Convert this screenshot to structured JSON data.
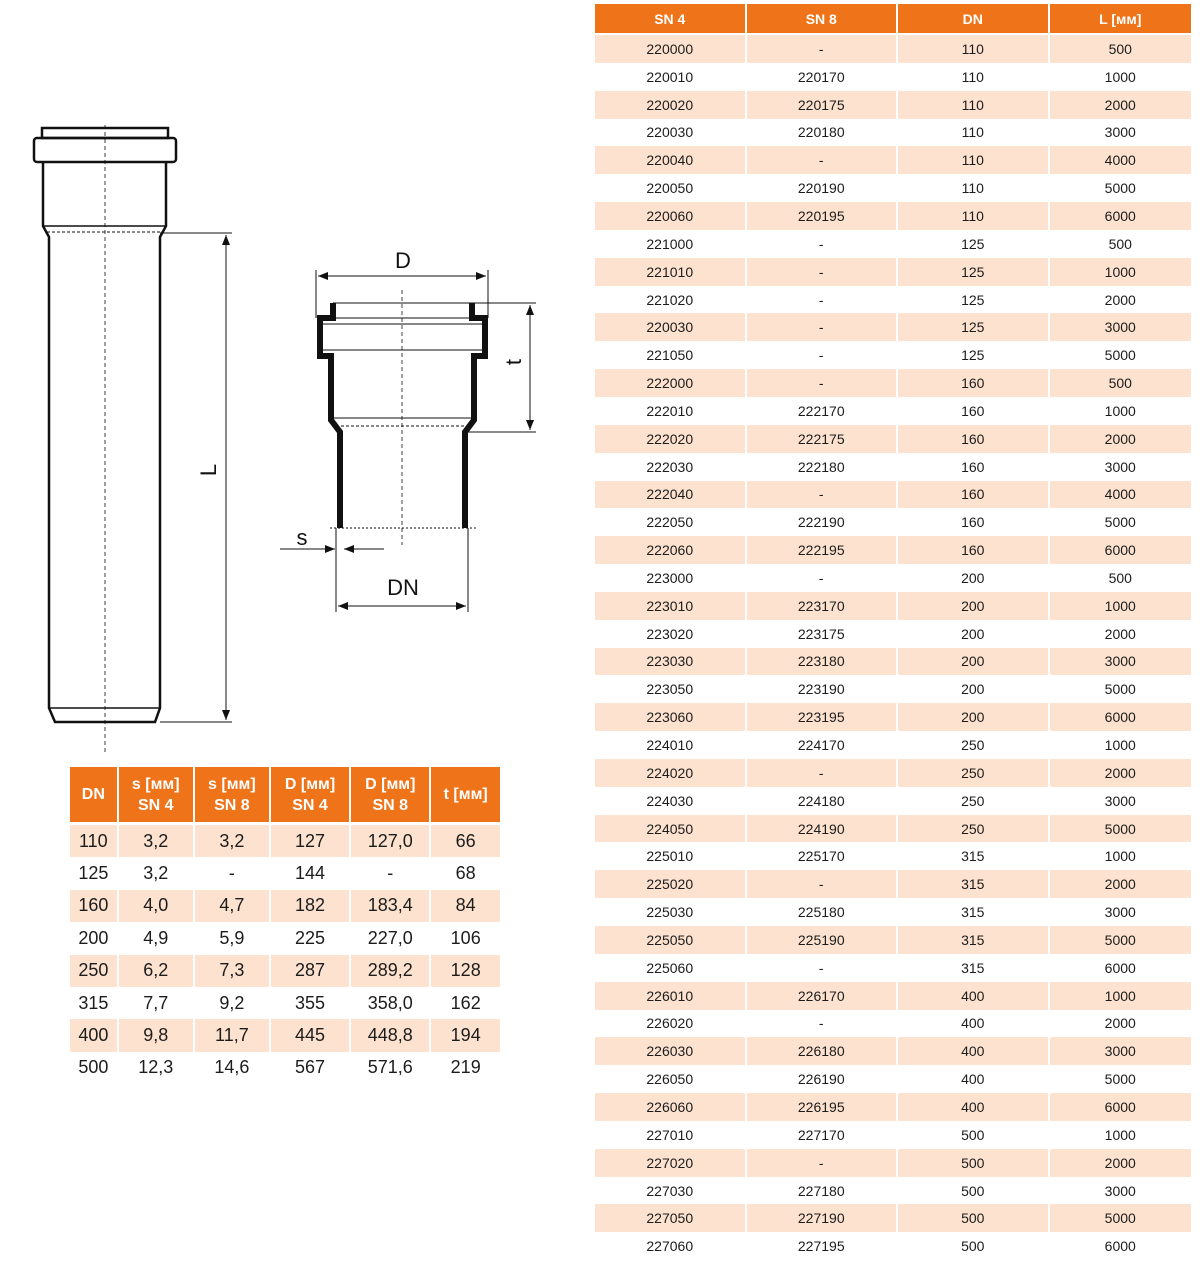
{
  "drawing": {
    "length_label": "L",
    "outer_diameter_label": "D",
    "socket_depth_label": "t",
    "wall_thickness_label": "s",
    "nominal_diameter_label": "DN"
  },
  "dimensions_table": {
    "headers": [
      [
        "DN"
      ],
      [
        "s [мм]",
        "SN 4"
      ],
      [
        "s [мм]",
        "SN 8"
      ],
      [
        "D  [мм]",
        "SN 4"
      ],
      [
        "D  [мм]",
        "SN 8"
      ],
      [
        "t [мм]"
      ]
    ],
    "rows": [
      [
        "110",
        "3,2",
        "3,2",
        "127",
        "127,0",
        "66"
      ],
      [
        "125",
        "3,2",
        "-",
        "144",
        "-",
        "68"
      ],
      [
        "160",
        "4,0",
        "4,7",
        "182",
        "183,4",
        "84"
      ],
      [
        "200",
        "4,9",
        "5,9",
        "225",
        "227,0",
        "106"
      ],
      [
        "250",
        "6,2",
        "7,3",
        "287",
        "289,2",
        "128"
      ],
      [
        "315",
        "7,7",
        "9,2",
        "355",
        "358,0",
        "162"
      ],
      [
        "400",
        "9,8",
        "11,7",
        "445",
        "448,8",
        "194"
      ],
      [
        "500",
        "12,3",
        "14,6",
        "567",
        "571,6",
        "219"
      ]
    ]
  },
  "articles_table": {
    "headers": [
      "SN 4",
      "SN 8",
      "DN",
      "L [мм]"
    ],
    "rows": [
      [
        "220000",
        "-",
        "110",
        "500"
      ],
      [
        "220010",
        "220170",
        "110",
        "1000"
      ],
      [
        "220020",
        "220175",
        "110",
        "2000"
      ],
      [
        "220030",
        "220180",
        "110",
        "3000"
      ],
      [
        "220040",
        "-",
        "110",
        "4000"
      ],
      [
        "220050",
        "220190",
        "110",
        "5000"
      ],
      [
        "220060",
        "220195",
        "110",
        "6000"
      ],
      [
        "221000",
        "-",
        "125",
        "500"
      ],
      [
        "221010",
        "-",
        "125",
        "1000"
      ],
      [
        "221020",
        "-",
        "125",
        "2000"
      ],
      [
        "220030",
        "-",
        "125",
        "3000"
      ],
      [
        "221050",
        "-",
        "125",
        "5000"
      ],
      [
        "222000",
        "-",
        "160",
        "500"
      ],
      [
        "222010",
        "222170",
        "160",
        "1000"
      ],
      [
        "222020",
        "222175",
        "160",
        "2000"
      ],
      [
        "222030",
        "222180",
        "160",
        "3000"
      ],
      [
        "222040",
        "-",
        "160",
        "4000"
      ],
      [
        "222050",
        "222190",
        "160",
        "5000"
      ],
      [
        "222060",
        "222195",
        "160",
        "6000"
      ],
      [
        "223000",
        "-",
        "200",
        "500"
      ],
      [
        "223010",
        "223170",
        "200",
        "1000"
      ],
      [
        "223020",
        "223175",
        "200",
        "2000"
      ],
      [
        "223030",
        "223180",
        "200",
        "3000"
      ],
      [
        "223050",
        "223190",
        "200",
        "5000"
      ],
      [
        "223060",
        "223195",
        "200",
        "6000"
      ],
      [
        "224010",
        "224170",
        "250",
        "1000"
      ],
      [
        "224020",
        "-",
        "250",
        "2000"
      ],
      [
        "224030",
        "224180",
        "250",
        "3000"
      ],
      [
        "224050",
        "224190",
        "250",
        "5000"
      ],
      [
        "225010",
        "225170",
        "315",
        "1000"
      ],
      [
        "225020",
        "-",
        "315",
        "2000"
      ],
      [
        "225030",
        "225180",
        "315",
        "3000"
      ],
      [
        "225050",
        "225190",
        "315",
        "5000"
      ],
      [
        "225060",
        "-",
        "315",
        "6000"
      ],
      [
        "226010",
        "226170",
        "400",
        "1000"
      ],
      [
        "226020",
        "-",
        "400",
        "2000"
      ],
      [
        "226030",
        "226180",
        "400",
        "3000"
      ],
      [
        "226050",
        "226190",
        "400",
        "5000"
      ],
      [
        "226060",
        "226195",
        "400",
        "6000"
      ],
      [
        "227010",
        "227170",
        "500",
        "1000"
      ],
      [
        "227020",
        "-",
        "500",
        "2000"
      ],
      [
        "227030",
        "227180",
        "500",
        "3000"
      ],
      [
        "227050",
        "227190",
        "500",
        "5000"
      ],
      [
        "227060",
        "227195",
        "500",
        "6000"
      ]
    ]
  },
  "colors": {
    "header": "#ef7419",
    "row_alt": "#fde3cf",
    "text": "#1c1c1c"
  }
}
